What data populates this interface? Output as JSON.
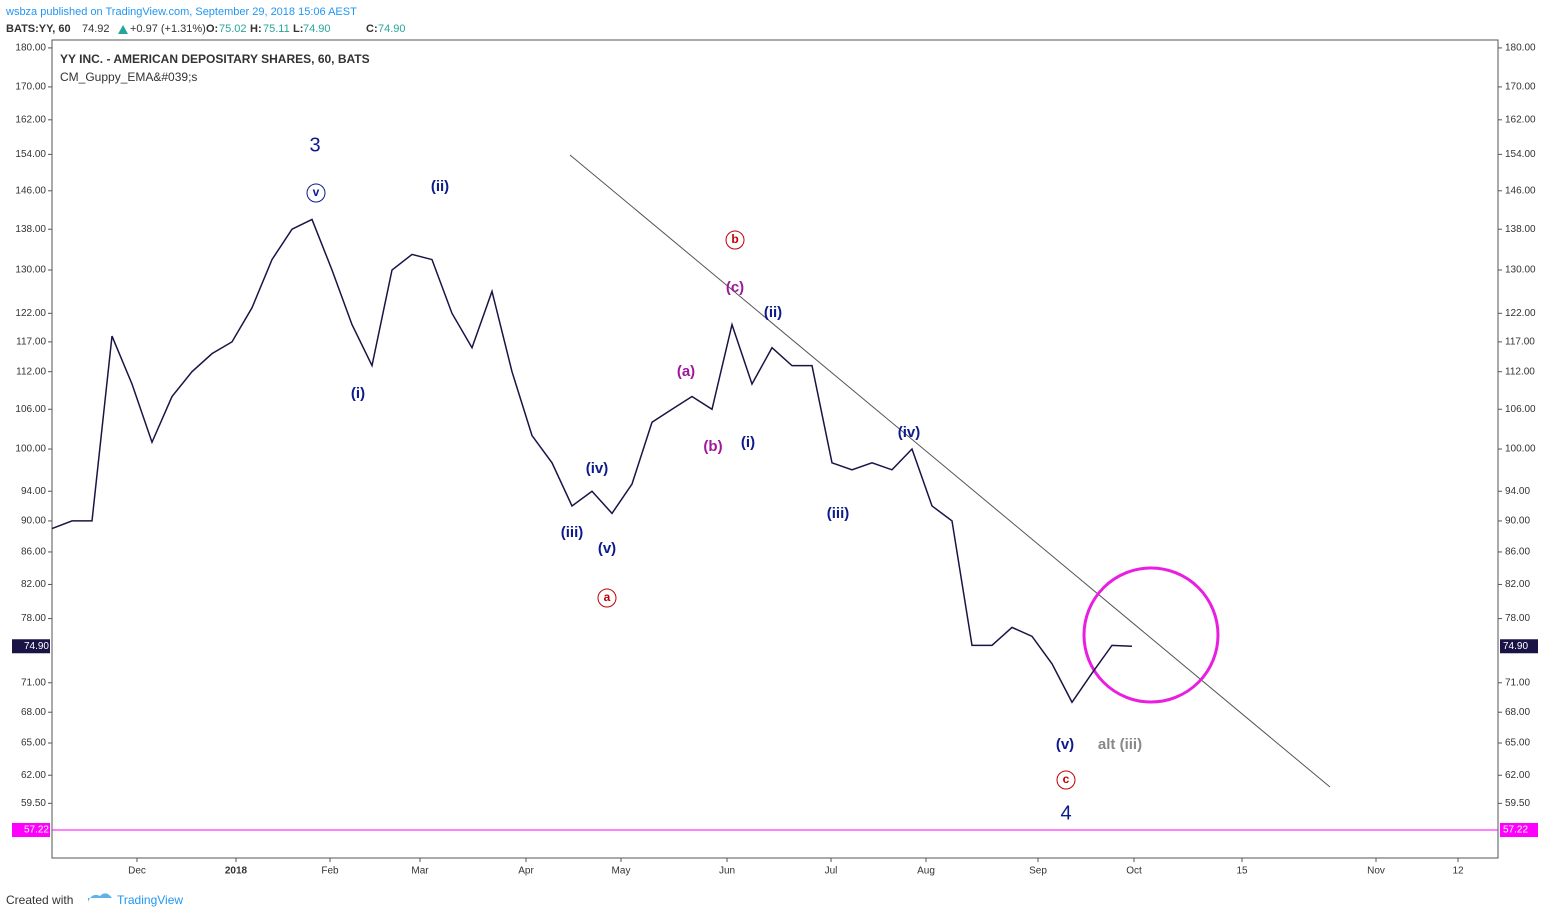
{
  "header": {
    "published": "wsbza published on TradingView.com, September 29, 2018 15:06 AEST",
    "symbol": "BATS:YY, 60",
    "last": "74.92",
    "change": "+0.97 (+1.31%)",
    "o_label": "O:",
    "o": "75.02",
    "h_label": "H:",
    "h": "75.11",
    "l_label": "L:",
    "l": "74.90",
    "c_label": "C:",
    "c": "74.90"
  },
  "chart_data": {
    "type": "line",
    "title": "YY INC. - AMERICAN DEPOSITARY SHARES, 60, BATS",
    "subtitle": "CM_Guppy_EMA&#039;s",
    "color": "#1a1446",
    "log_scale": true,
    "x": [
      0,
      1,
      2,
      3,
      4,
      5,
      6,
      7,
      8,
      9,
      10,
      11,
      12,
      13,
      14,
      15,
      16,
      17,
      18,
      19,
      20,
      21,
      22,
      23,
      24,
      25,
      26,
      27,
      28,
      29,
      30,
      31,
      32,
      33,
      34,
      35,
      36,
      37,
      38,
      39,
      40,
      41,
      42,
      43,
      44,
      45,
      46,
      47,
      48,
      49,
      50,
      51,
      52,
      53,
      54
    ],
    "values": [
      89,
      90,
      90,
      118,
      110,
      101,
      108,
      112,
      115,
      117,
      123,
      132,
      138,
      140,
      130,
      120,
      113,
      130,
      133,
      132,
      122,
      116,
      126,
      112,
      102,
      98,
      92,
      94,
      91,
      95,
      104,
      106,
      108,
      106,
      120,
      110,
      116,
      113,
      113,
      98,
      97,
      98,
      97,
      100,
      92,
      90,
      75,
      75,
      77,
      76,
      73,
      69,
      72,
      75,
      74.9
    ],
    "xlim": [
      0,
      72.3
    ],
    "xticks": [
      {
        "value": 4.25,
        "label": "Dec"
      },
      {
        "value": 9.2,
        "label": "2018"
      },
      {
        "value": 13.9,
        "label": "Feb"
      },
      {
        "value": 18.4,
        "label": "Mar"
      },
      {
        "value": 23.7,
        "label": "Apr"
      },
      {
        "value": 28.45,
        "label": "May"
      },
      {
        "value": 33.75,
        "label": "Jun"
      },
      {
        "value": 38.95,
        "label": "Jul"
      },
      {
        "value": 43.7,
        "label": "Aug"
      },
      {
        "value": 49.3,
        "label": "Sep"
      },
      {
        "value": 54.1,
        "label": "Oct"
      },
      {
        "value": 59.5,
        "label": "15"
      },
      {
        "value": 66.2,
        "label": "Nov"
      },
      {
        "value": 70.3,
        "label": "12"
      }
    ],
    "ylim": [
      54.92,
      182.1
    ],
    "yticks": [
      {
        "value": 180,
        "label": "180.00"
      },
      {
        "value": 170,
        "label": "170.00"
      },
      {
        "value": 162,
        "label": "162.00"
      },
      {
        "value": 154,
        "label": "154.00"
      },
      {
        "value": 146,
        "label": "146.00"
      },
      {
        "value": 138,
        "label": "138.00"
      },
      {
        "value": 130,
        "label": "130.00"
      },
      {
        "value": 122,
        "label": "122.00"
      },
      {
        "value": 117,
        "label": "117.00"
      },
      {
        "value": 112,
        "label": "112.00"
      },
      {
        "value": 106,
        "label": "106.00"
      },
      {
        "value": 100,
        "label": "100.00"
      },
      {
        "value": 94,
        "label": "94.00"
      },
      {
        "value": 90,
        "label": "90.00"
      },
      {
        "value": 86,
        "label": "86.00"
      },
      {
        "value": 82,
        "label": "82.00"
      },
      {
        "value": 78,
        "label": "78.00"
      },
      {
        "value": 71,
        "label": "71.00"
      },
      {
        "value": 68,
        "label": "68.00"
      },
      {
        "value": 65,
        "label": "65.00"
      },
      {
        "value": 62,
        "label": "62.00"
      },
      {
        "value": 59.5,
        "label": "59.50"
      }
    ],
    "price_line": {
      "value": 74.9,
      "label": "74.90"
    },
    "hline": {
      "value": 57.22,
      "label": "57.22",
      "color": "#ff00ff"
    },
    "annotations": [
      "3",
      "v",
      "(ii)",
      "(i)",
      "b",
      "(c)",
      "(ii)",
      "(a)",
      "(b)",
      "(i)",
      "(iv)",
      "(iii)",
      "(v)",
      "a",
      "(iv)",
      "(iii)",
      "(v)",
      "alt (iii)",
      "c",
      "4"
    ]
  },
  "footer": {
    "created": "Created with",
    "brand": "TradingView"
  }
}
